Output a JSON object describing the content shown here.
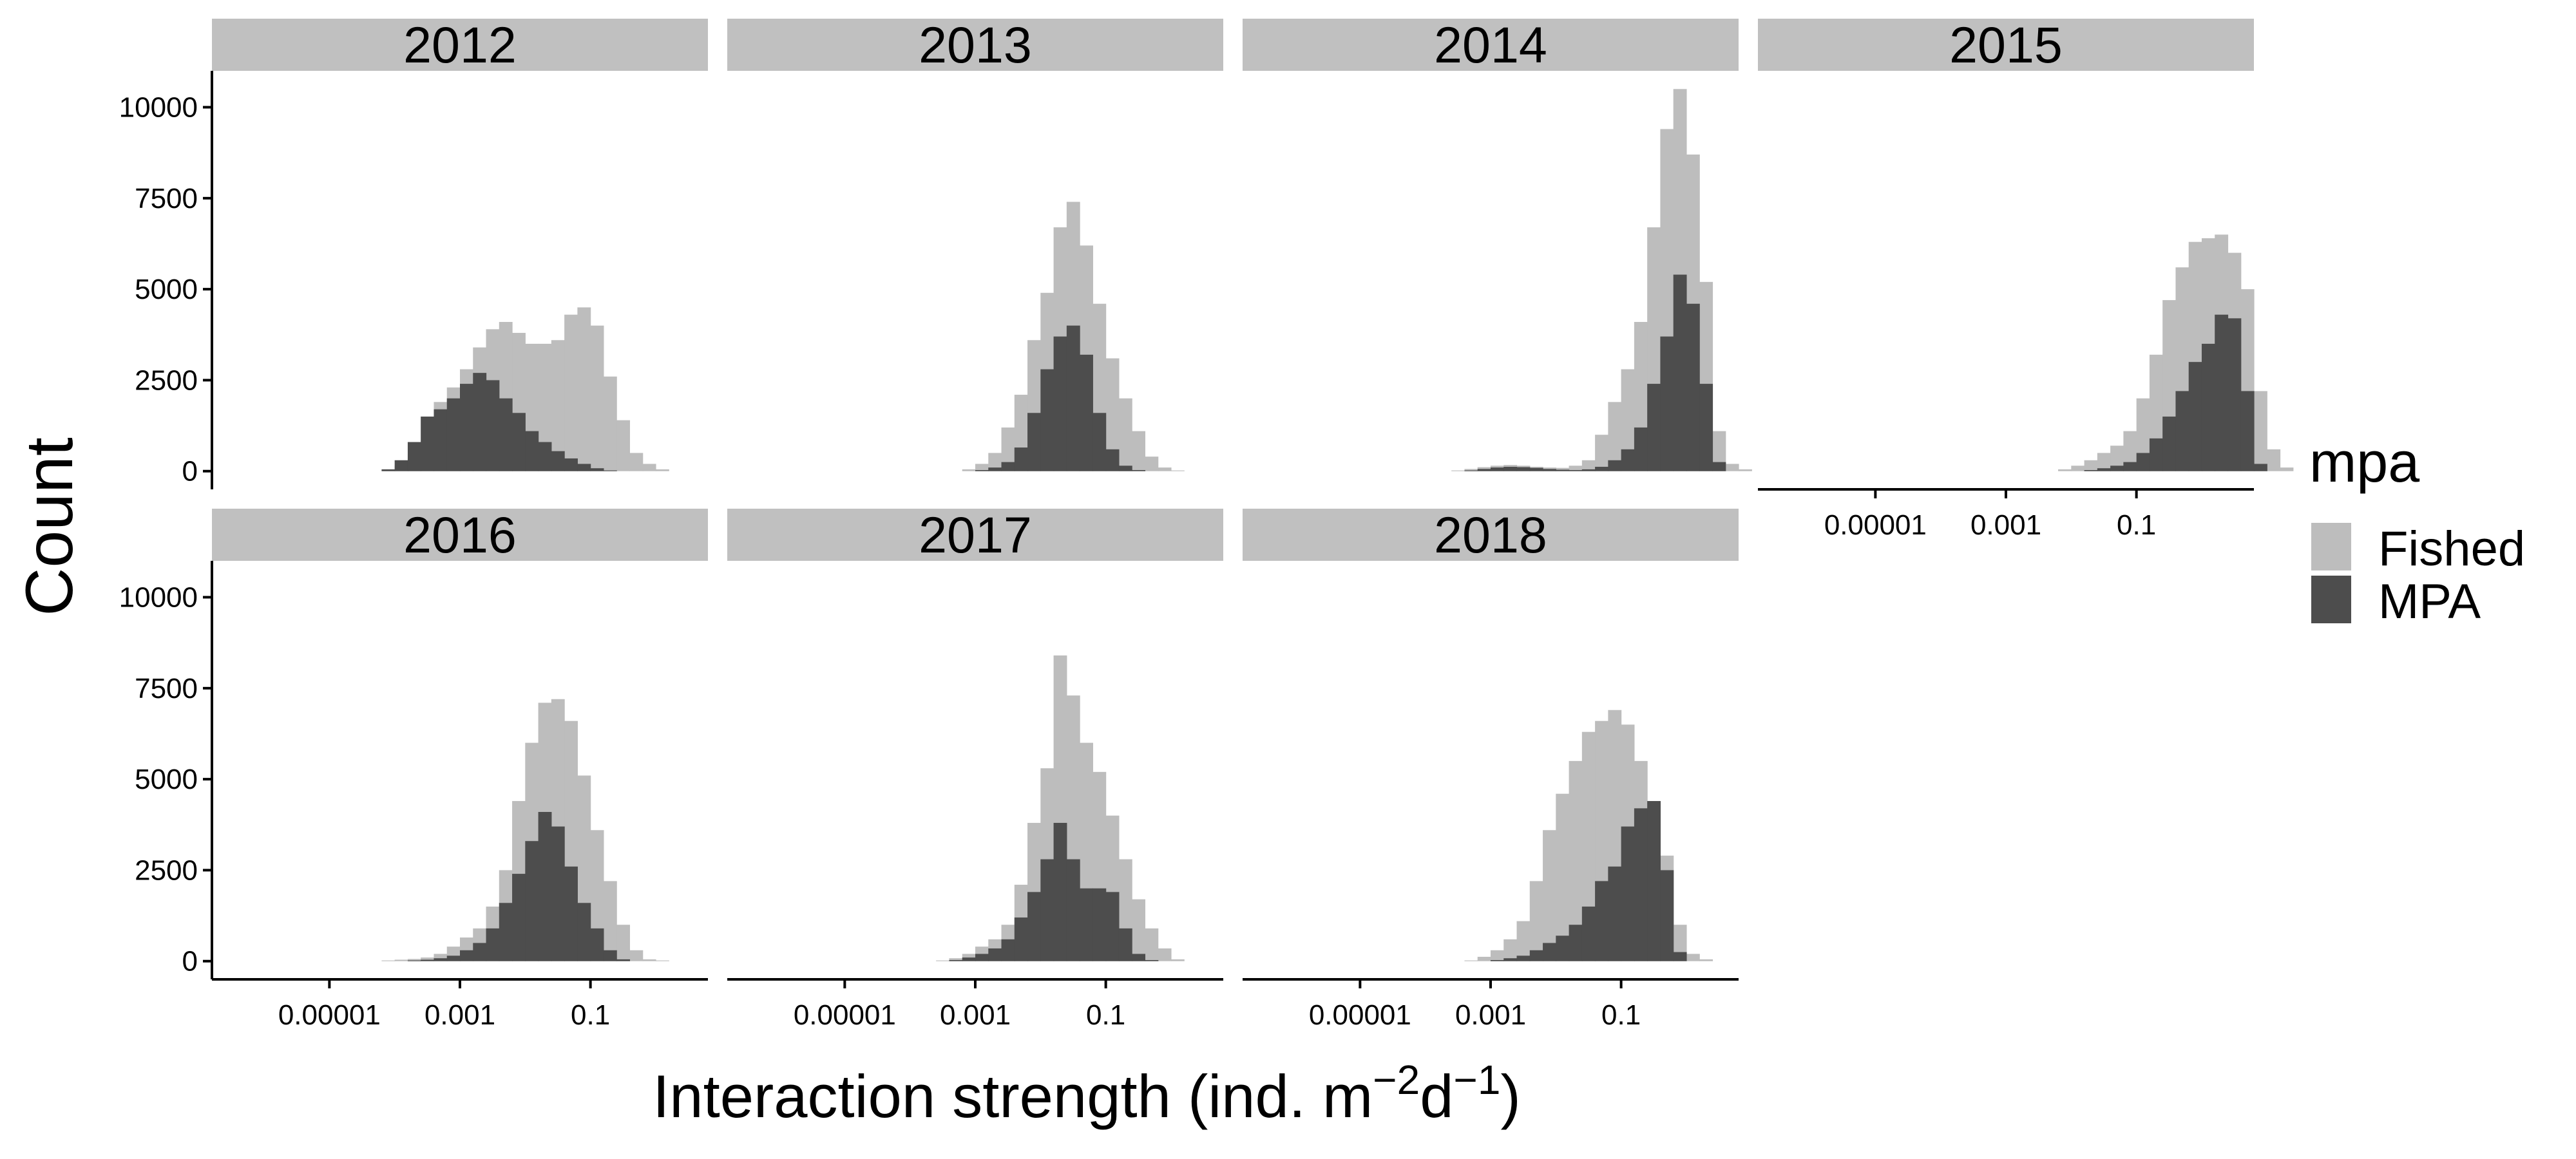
{
  "chart_data": {
    "type": "histogram",
    "facets_by": "year",
    "x_axis": {
      "label_main": "Interaction strength (ind. m",
      "label_exp1": "−2",
      "label_mid": "d",
      "label_exp2": "−1",
      "label_end": ")",
      "scale": "log10",
      "range_log10": [
        -6.8,
        0.8
      ],
      "ticks": [
        {
          "log10": -5,
          "label": "0.00001"
        },
        {
          "log10": -3,
          "label": "0.001"
        },
        {
          "log10": -1,
          "label": "0.1"
        }
      ]
    },
    "y_axis": {
      "label": "Count",
      "range": [
        -500,
        11000
      ],
      "ticks": [
        {
          "value": 0,
          "label": "0"
        },
        {
          "value": 2500,
          "label": "2500"
        },
        {
          "value": 5000,
          "label": "5000"
        },
        {
          "value": 7500,
          "label": "7500"
        },
        {
          "value": 10000,
          "label": "10000"
        }
      ]
    },
    "legend": {
      "title": "mpa",
      "position": "right",
      "items": [
        {
          "key": "fished",
          "label": "Fished",
          "color": "#bdbdbd"
        },
        {
          "key": "mpa",
          "label": "MPA",
          "color": "#4d4d4d"
        }
      ]
    },
    "bins": {
      "start_log10": -4.2,
      "width_log10": 0.2
    },
    "panels": [
      {
        "year": "2012",
        "fished": [
          20,
          150,
          450,
          1500,
          1900,
          2300,
          2800,
          3400,
          3900,
          4100,
          3800,
          3500,
          3500,
          3600,
          4300,
          4500,
          4000,
          2600,
          1400,
          500,
          200,
          50
        ],
        "mpa": [
          50,
          300,
          800,
          1500,
          1700,
          2000,
          2400,
          2700,
          2500,
          2000,
          1600,
          1100,
          800,
          550,
          350,
          200,
          80,
          20,
          0,
          0,
          0,
          0
        ]
      },
      {
        "year": "2013",
        "fished": [
          0,
          0,
          0,
          0,
          0,
          50,
          200,
          500,
          1200,
          2100,
          3600,
          4900,
          6700,
          7400,
          6200,
          4600,
          3100,
          2000,
          1100,
          400,
          100,
          20
        ],
        "mpa": [
          0,
          0,
          0,
          0,
          0,
          0,
          30,
          100,
          250,
          650,
          1600,
          2800,
          3700,
          4000,
          3200,
          1600,
          600,
          150,
          30,
          0,
          0,
          0
        ]
      },
      {
        "year": "2014",
        "fished": [
          0,
          0,
          0,
          20,
          60,
          110,
          150,
          170,
          150,
          120,
          100,
          90,
          150,
          300,
          1000,
          1900,
          2800,
          4100,
          6700,
          9400,
          10500,
          8700,
          5200,
          1100,
          200,
          50
        ],
        "mpa": [
          0,
          0,
          0,
          0,
          20,
          60,
          100,
          120,
          110,
          90,
          60,
          40,
          30,
          50,
          120,
          300,
          600,
          1200,
          2400,
          3700,
          5400,
          4600,
          2400,
          250,
          0,
          0
        ]
      },
      {
        "year": "2015",
        "fished": [
          0,
          0,
          0,
          0,
          0,
          0,
          0,
          0,
          0,
          0,
          50,
          150,
          300,
          500,
          700,
          1100,
          2000,
          3200,
          4700,
          5600,
          6300,
          6400,
          6500,
          6000,
          5000,
          2200,
          600,
          100
        ],
        "mpa": [
          0,
          0,
          0,
          0,
          0,
          0,
          0,
          0,
          0,
          0,
          0,
          0,
          30,
          80,
          150,
          250,
          500,
          900,
          1500,
          2200,
          3000,
          3500,
          4300,
          4200,
          2200,
          200,
          0,
          0
        ]
      },
      {
        "year": "2016",
        "fished": [
          20,
          40,
          60,
          100,
          200,
          400,
          650,
          900,
          1500,
          2500,
          4400,
          6000,
          7100,
          7200,
          6600,
          5100,
          3600,
          2200,
          1000,
          300,
          50,
          20
        ],
        "mpa": [
          0,
          0,
          20,
          40,
          80,
          150,
          300,
          500,
          900,
          1600,
          2400,
          3300,
          4100,
          3700,
          2600,
          1600,
          900,
          300,
          50,
          0,
          0,
          0
        ]
      },
      {
        "year": "2017",
        "fished": [
          0,
          0,
          0,
          20,
          80,
          200,
          400,
          600,
          1000,
          2100,
          3800,
          5300,
          8400,
          7300,
          6000,
          5200,
          4000,
          2800,
          1700,
          900,
          350,
          50
        ],
        "mpa": [
          0,
          0,
          0,
          0,
          30,
          100,
          200,
          350,
          600,
          1200,
          1900,
          2800,
          3800,
          2800,
          2000,
          2000,
          1900,
          900,
          200,
          30,
          0,
          0
        ]
      },
      {
        "year": "2018",
        "fished": [
          0,
          0,
          0,
          0,
          20,
          120,
          300,
          600,
          1100,
          2200,
          3600,
          4600,
          5500,
          6300,
          6600,
          6900,
          6500,
          5500,
          4100,
          2900,
          1000,
          200,
          50
        ],
        "mpa": [
          0,
          0,
          0,
          0,
          0,
          0,
          30,
          80,
          150,
          300,
          500,
          700,
          1000,
          1500,
          2200,
          2600,
          3700,
          4200,
          4400,
          2500,
          250,
          0,
          0
        ]
      }
    ]
  }
}
